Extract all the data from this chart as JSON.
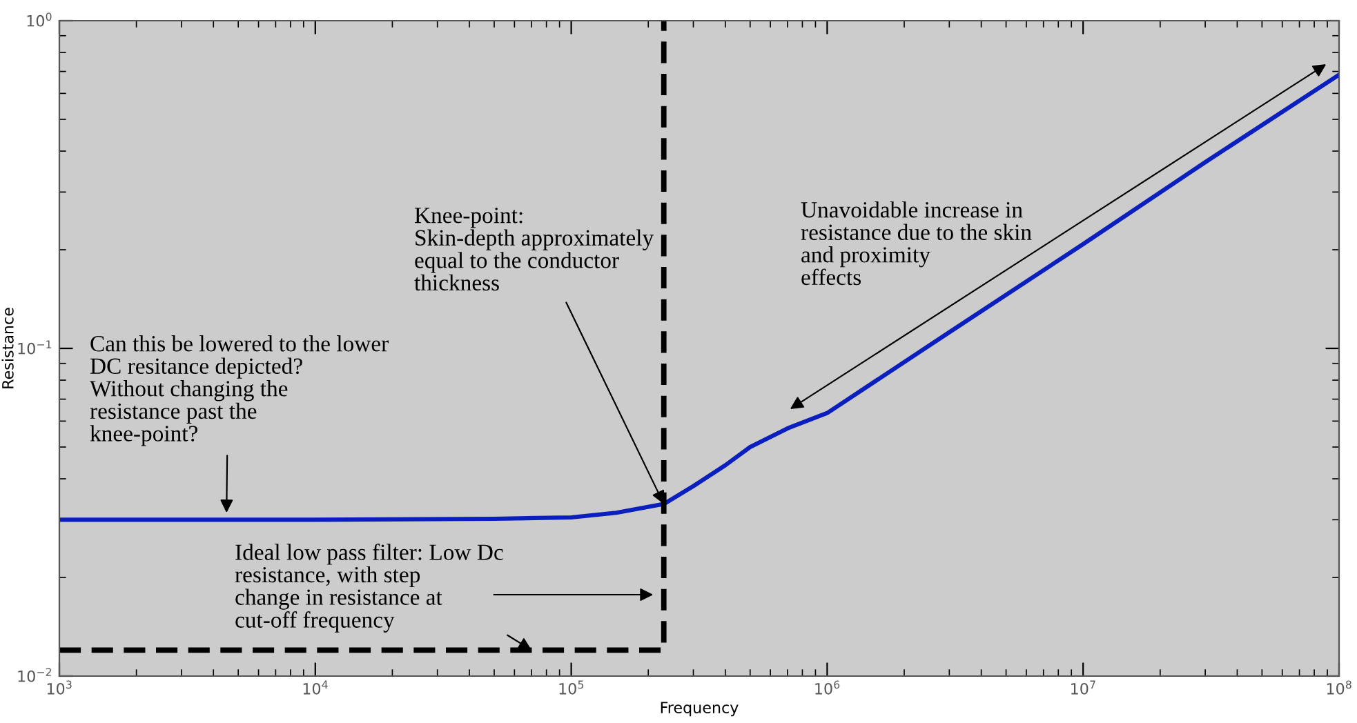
{
  "chart_data": {
    "type": "line",
    "xlabel": "Frequency",
    "ylabel": "Resistance",
    "log": "xy",
    "grid": false,
    "marker": "none",
    "xlim": [
      1000,
      100000000
    ],
    "ylim": [
      0.01,
      1
    ],
    "xticks": [
      {
        "value": 1000,
        "label": "10$^{3}$"
      },
      {
        "value": 10000,
        "label": "10$^{4}$"
      },
      {
        "value": 100000,
        "label": "10$^{5}$"
      },
      {
        "value": 1000000,
        "label": "10$^{6}$"
      },
      {
        "value": 10000000,
        "label": "10$^{7}$"
      },
      {
        "value": 100000000,
        "label": "10$^{8}$"
      }
    ],
    "yticks": [
      {
        "value": 0.01,
        "label": "10$^{−2}$"
      },
      {
        "value": 0.1,
        "label": "10$^{−1}$"
      },
      {
        "value": 1,
        "label": "10$^{0}$"
      }
    ],
    "series": [
      {
        "color": "#0a1fbe",
        "line_style": "solid",
        "x": [
          1000,
          10000,
          50000,
          100000,
          150000,
          230000,
          300000,
          400000,
          500000,
          700000,
          1000000,
          3000000,
          10000000,
          30000000,
          100000000
        ],
        "values": [
          0.03,
          0.03,
          0.0302,
          0.0305,
          0.0315,
          0.0335,
          0.038,
          0.044,
          0.05,
          0.057,
          0.0635,
          0.112,
          0.208,
          0.37,
          0.684
        ]
      },
      {
        "color": "#000000",
        "line_style": "dashed",
        "x": [
          1000,
          230000,
          230000
        ],
        "values": [
          0.012,
          0.012,
          1
        ]
      }
    ],
    "annotations": [
      {
        "text": "Can this be lowered to the lower\nDC resitance depicted?\nWithout changing the\nresistance past the\nknee-point?",
        "x": 4500,
        "y": 0.0315
      },
      {
        "text": "Knee-point:\nSkin-depth approximately\nequal to the conductor\nthickness",
        "x": 230000,
        "y": 0.0335
      },
      {
        "text": "Ideal low pass filter: Low Dc\nresistance, with step\nchange in resistance at\ncut-off frequency",
        "x": 70000,
        "y": 0.012
      },
      "Unavoidable increase in\nresistance due to the skin\nand proximity\neffects"
    ]
  }
}
